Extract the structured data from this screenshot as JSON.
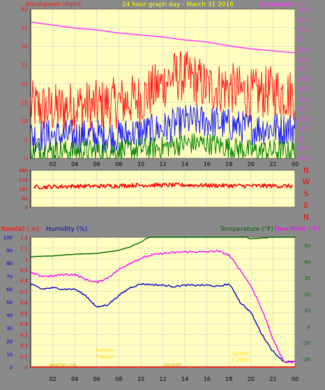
{
  "colors": {
    "background": "#8a8a8a",
    "plot_bg": "#ffffc0",
    "grid": "#c8c8c8",
    "windspeed": "#ff1a1a",
    "windspeed_avg": "#1a1aff",
    "windspeed_low": "#008000",
    "barometer": "#ff33ff",
    "direction": "#ff0000",
    "rainfall": "#ff0000",
    "humidity": "#0000c8",
    "temperature": "#006400",
    "dewpoint": "#ff00ff",
    "title": "#ffff00",
    "sun_label": "#ffd700"
  },
  "header": {
    "left_label": "Windspeed (mph)",
    "title": "24 hour graph day - March 31 2016",
    "right_label": "Barometer (.in)"
  },
  "bottom_header": {
    "rainfall_label": "Rainfall (.in)",
    "humidity_label": "Humidity (%)",
    "temperature_label": "Temperature (°F)",
    "dewpoint_label": "Dew Point (°F)"
  },
  "sun_labels": {
    "sunrise_label": "Sunrise",
    "sunrise_time": "7:00am",
    "sunset_label": "Sunset",
    "sunset_time": "7:25pm",
    "footnote_left": "weather.com",
    "footnote_mid": "Daylight"
  },
  "chart_data": [
    {
      "type": "line",
      "name": "wind-barometer",
      "x_ticks": [
        "02",
        "04",
        "06",
        "08",
        "10",
        "12",
        "14",
        "16",
        "18",
        "20",
        "22",
        "00"
      ],
      "xlim": [
        0,
        24
      ],
      "left_axis": {
        "label": "Windspeed (mph)",
        "ylim": [
          0,
          40
        ],
        "ticks": [
          0,
          5,
          10,
          15,
          20,
          25,
          30,
          35,
          40
        ]
      },
      "right_axis": {
        "label": "Barometer (.in)",
        "ylim": [
          28.8,
          30.3
        ],
        "ticks": [
          "28.8",
          "28.9",
          "29",
          "29.1",
          "29.2",
          "29.3",
          "29.4",
          "29.5",
          "29.6",
          "29.7",
          "29.8",
          "29.9",
          "30",
          "30.1",
          "30.2",
          "30.3"
        ]
      },
      "series": [
        {
          "name": "Windspeed",
          "axis": "left",
          "x": [
            0,
            2,
            4,
            6,
            8,
            10,
            12,
            13,
            14,
            15,
            16,
            18,
            20,
            22,
            24
          ],
          "values": [
            14,
            13,
            14,
            14,
            15,
            16,
            20,
            22,
            22,
            21,
            19,
            19,
            17,
            18,
            17
          ]
        },
        {
          "name": "Average",
          "axis": "left",
          "x": [
            0,
            4,
            8,
            12,
            14,
            16,
            20,
            24
          ],
          "values": [
            6,
            6,
            6,
            8,
            10,
            10,
            8,
            8
          ]
        },
        {
          "name": "Low",
          "axis": "left",
          "x": [
            0,
            4,
            8,
            12,
            14,
            16,
            20,
            24
          ],
          "values": [
            2,
            2,
            2,
            3,
            4,
            4,
            2,
            2
          ]
        },
        {
          "name": "Barometer",
          "axis": "right",
          "x": [
            0,
            2,
            4,
            6,
            8,
            10,
            12,
            14,
            16,
            18,
            20,
            22,
            24
          ],
          "values": [
            30.17,
            30.14,
            30.11,
            30.09,
            30.06,
            30.04,
            30.02,
            29.99,
            29.97,
            29.93,
            29.9,
            29.88,
            29.86
          ]
        }
      ]
    },
    {
      "type": "line",
      "name": "wind-direction",
      "x_ticks": [
        "02",
        "04",
        "06",
        "08",
        "10",
        "12",
        "14",
        "16",
        "18",
        "20",
        "22",
        "00"
      ],
      "xlim": [
        0,
        24
      ],
      "left_axis": {
        "ylim": [
          0,
          360
        ],
        "ticks": [
          0,
          90,
          180,
          270,
          360
        ]
      },
      "right_labels": [
        "N",
        "W",
        "S",
        "E",
        "N"
      ],
      "series": [
        {
          "name": "Direction",
          "x": [
            0,
            2,
            4,
            6,
            8,
            10,
            12,
            14,
            16,
            18,
            20,
            22,
            24
          ],
          "values": [
            195,
            200,
            205,
            205,
            210,
            215,
            215,
            215,
            212,
            210,
            208,
            208,
            205
          ]
        }
      ]
    },
    {
      "type": "line",
      "name": "rain-humidity-temp",
      "x_ticks": [
        "02",
        "04",
        "06",
        "08",
        "10",
        "12",
        "14",
        "16",
        "18",
        "20",
        "22",
        "00"
      ],
      "xlim": [
        0,
        24
      ],
      "left_axis": {
        "label": "Rainfall (.in)",
        "ylim": [
          0,
          1.2
        ],
        "ticks": [
          "0",
          "0.1",
          "0.2",
          "0.3",
          "0.4",
          "0.5",
          "0.6",
          "0.7",
          "0.8",
          "0.9",
          "1",
          "1.1",
          "1.2"
        ]
      },
      "left2_axis": {
        "label": "Humidity (%)",
        "ylim": [
          0,
          100
        ],
        "ticks": [
          0,
          10,
          20,
          30,
          40,
          50,
          60,
          70,
          80,
          90,
          100
        ]
      },
      "right_axis": {
        "label": "Temperature (°F)",
        "ylim": [
          -25,
          55
        ],
        "ticks": [
          -20,
          -10,
          0,
          10,
          20,
          30,
          40,
          50
        ]
      },
      "series": [
        {
          "name": "Temperature",
          "axis": "right",
          "x": [
            0,
            2,
            4,
            6,
            8,
            9,
            10,
            11,
            12,
            14,
            16,
            18,
            19,
            20,
            22,
            24
          ],
          "values": [
            43,
            43.5,
            44.5,
            45,
            47,
            49,
            52,
            56,
            58,
            60,
            60,
            59,
            56,
            54,
            55,
            56
          ]
        },
        {
          "name": "Dew Point",
          "axis": "right",
          "x": [
            0,
            1,
            2,
            3,
            4,
            5,
            6,
            7,
            8,
            9,
            10,
            11,
            12,
            14,
            16,
            17,
            18,
            19,
            20,
            20.5,
            21,
            21.5,
            22,
            22.5,
            23,
            24
          ],
          "values": [
            33,
            31,
            31,
            32,
            32,
            29,
            27,
            30,
            35,
            39,
            42,
            44,
            45,
            46,
            46,
            46.5,
            44,
            35,
            25,
            18,
            10,
            2,
            -8,
            -15,
            -22,
            -22
          ]
        },
        {
          "name": "Humidity",
          "axis": "left2",
          "x": [
            0,
            1,
            2,
            3,
            4,
            5,
            6,
            7,
            8,
            9,
            10,
            12,
            13,
            14,
            16,
            17,
            18,
            18.5,
            19,
            20,
            21,
            22,
            23,
            24
          ],
          "values": [
            64,
            60,
            61,
            60,
            60,
            55,
            46,
            48,
            55,
            61,
            64,
            63,
            62,
            63,
            63,
            62,
            64,
            58,
            50,
            42,
            25,
            12,
            4,
            4
          ]
        },
        {
          "name": "Rainfall",
          "axis": "left",
          "x": [
            0,
            24
          ],
          "values": [
            0,
            0
          ]
        }
      ]
    }
  ]
}
